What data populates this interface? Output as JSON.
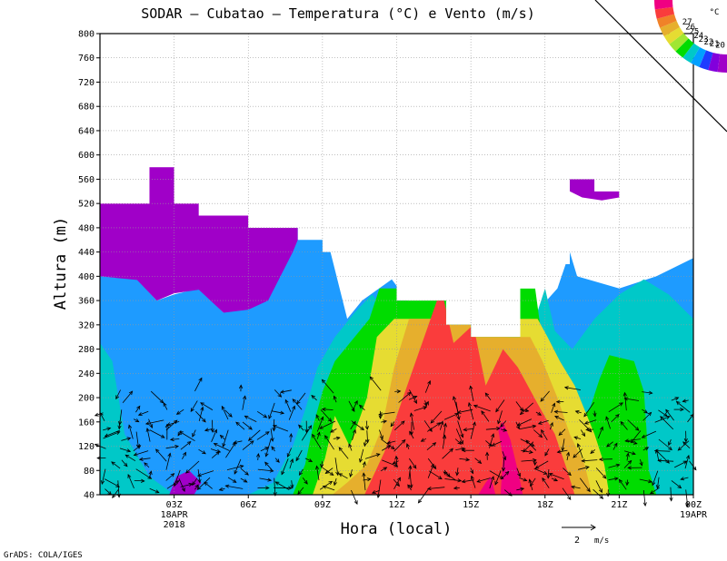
{
  "chart_data": {
    "type": "heatmap",
    "title": "SODAR – Cubatao – Temperatura (°C) e Vento (m/s)",
    "xlabel": "Hora (local)",
    "ylabel": "Altura (m)",
    "credit": "GrADS: COLA/IGES",
    "ylim": [
      40,
      800
    ],
    "yticks": [
      "40",
      "80",
      "120",
      "160",
      "200",
      "240",
      "280",
      "320",
      "360",
      "400",
      "440",
      "480",
      "520",
      "560",
      "600",
      "640",
      "680",
      "720",
      "760",
      "800"
    ],
    "xlim_hours": [
      22,
      46
    ],
    "xticks": [
      {
        "hour": 25,
        "label": "03Z",
        "sub1": "18APR",
        "sub2": "2018"
      },
      {
        "hour": 28,
        "label": "06Z",
        "sub1": "",
        "sub2": ""
      },
      {
        "hour": 31,
        "label": "09Z",
        "sub1": "",
        "sub2": ""
      },
      {
        "hour": 34,
        "label": "12Z",
        "sub1": "",
        "sub2": ""
      },
      {
        "hour": 37,
        "label": "15Z",
        "sub1": "",
        "sub2": ""
      },
      {
        "hour": 40,
        "label": "18Z",
        "sub1": "",
        "sub2": ""
      },
      {
        "hour": 43,
        "label": "21Z",
        "sub1": "",
        "sub2": ""
      },
      {
        "hour": 46,
        "label": "00Z",
        "sub1": "19APR",
        "sub2": ""
      }
    ],
    "grid": true,
    "legend": {
      "position": "top-right",
      "unit": "°C",
      "levels": [
        "20",
        "21",
        "22",
        "23",
        "24",
        "25",
        "26",
        "27"
      ],
      "colors": [
        "#a000c8",
        "#8200dc",
        "#1e3cff",
        "#00a0ff",
        "#00c8c8",
        "#00dc00",
        "#a0e632",
        "#e6dc32",
        "#e6af2d",
        "#f08228",
        "#fa3c3c",
        "#f00082"
      ]
    },
    "wind_reference": {
      "label": "2",
      "unit": "m/s",
      "value": 2
    },
    "colors": {
      "c20": "#a000c8",
      "c21": "#1e9bff",
      "c22": "#00c8c8",
      "c23": "#00dc00",
      "c24": "#e6dc32",
      "c25": "#e6af2d",
      "c26": "#fa3c3c",
      "c27": "#f00082"
    },
    "data_top_m": [
      [
        22,
        520
      ],
      [
        24,
        520
      ],
      [
        24,
        580
      ],
      [
        25,
        580
      ],
      [
        25,
        520
      ],
      [
        26,
        520
      ],
      [
        26,
        500
      ],
      [
        27,
        500
      ],
      [
        28,
        500
      ],
      [
        28,
        480
      ],
      [
        29,
        480
      ],
      [
        30,
        480
      ],
      [
        30,
        460
      ],
      [
        31,
        460
      ],
      [
        31,
        440
      ],
      [
        32,
        440
      ],
      [
        32,
        380
      ],
      [
        33,
        380
      ],
      [
        33,
        400
      ],
      [
        34,
        400
      ],
      [
        34,
        360
      ],
      [
        35,
        360
      ],
      [
        36,
        360
      ],
      [
        36,
        320
      ],
      [
        37,
        320
      ],
      [
        37,
        300
      ],
      [
        38,
        300
      ],
      [
        39,
        300
      ],
      [
        39,
        380
      ],
      [
        40,
        380
      ],
      [
        40,
        420
      ],
      [
        41,
        420
      ],
      [
        41,
        560
      ],
      [
        42,
        560
      ],
      [
        42,
        540
      ],
      [
        43,
        540
      ],
      [
        43,
        480
      ],
      [
        44,
        480
      ],
      [
        45,
        480
      ],
      [
        46,
        480
      ]
    ],
    "contour_bands": [
      {
        "level": "c21",
        "pts": [
          [
            22,
            40
          ],
          [
            46,
            40
          ],
          [
            46,
            430
          ],
          [
            44.5,
            400
          ],
          [
            43,
            380
          ],
          [
            41.3,
            400
          ],
          [
            41,
            440
          ],
          [
            40.5,
            380
          ],
          [
            39.4,
            330
          ],
          [
            35,
            330
          ],
          [
            33.8,
            395
          ],
          [
            32.6,
            360
          ],
          [
            32,
            330
          ],
          [
            31.2,
            460
          ],
          [
            30,
            480
          ],
          [
            29,
            430
          ],
          [
            28,
            360
          ],
          [
            27,
            340
          ],
          [
            26,
            380
          ],
          [
            25,
            370
          ],
          [
            24.3,
            360
          ],
          [
            23.5,
            395
          ],
          [
            22,
            400
          ]
        ]
      },
      {
        "level": "c22",
        "pts": [
          [
            22,
            40
          ],
          [
            46,
            40
          ],
          [
            46,
            330
          ],
          [
            45,
            370
          ],
          [
            44,
            395
          ],
          [
            43,
            370
          ],
          [
            42,
            330
          ],
          [
            41.1,
            280
          ],
          [
            40.4,
            310
          ],
          [
            40,
            380
          ],
          [
            39.6,
            330
          ],
          [
            33.8,
            330
          ],
          [
            33,
            370
          ],
          [
            32.3,
            340
          ],
          [
            31.5,
            300
          ],
          [
            30.8,
            250
          ],
          [
            30.3,
            180
          ],
          [
            29.8,
            120
          ],
          [
            29,
            60
          ],
          [
            28,
            40
          ],
          [
            25,
            40
          ],
          [
            24,
            70
          ],
          [
            23,
            140
          ],
          [
            22.5,
            260
          ],
          [
            22,
            290
          ]
        ]
      },
      {
        "level": "c23",
        "pts": [
          [
            29.8,
            40
          ],
          [
            44.5,
            40
          ],
          [
            44.2,
            80
          ],
          [
            44.1,
            150
          ],
          [
            44,
            210
          ],
          [
            43.6,
            260
          ],
          [
            42.6,
            270
          ],
          [
            42.2,
            230
          ],
          [
            41.8,
            180
          ],
          [
            41.1,
            160
          ],
          [
            40.6,
            210
          ],
          [
            40.1,
            260
          ],
          [
            39.8,
            320
          ],
          [
            39.6,
            380
          ],
          [
            33.3,
            380
          ],
          [
            32.9,
            330
          ],
          [
            31.5,
            260
          ],
          [
            31,
            210
          ],
          [
            30.6,
            150
          ],
          [
            30.3,
            90
          ]
        ]
      },
      {
        "level": "c24",
        "pts": [
          [
            30.6,
            40
          ],
          [
            42.6,
            40
          ],
          [
            42.4,
            90
          ],
          [
            42,
            140
          ],
          [
            41.6,
            180
          ],
          [
            41.2,
            220
          ],
          [
            40.6,
            260
          ],
          [
            40.1,
            300
          ],
          [
            39.7,
            330
          ],
          [
            33.9,
            330
          ],
          [
            33.2,
            300
          ],
          [
            32.8,
            200
          ],
          [
            32.1,
            120
          ],
          [
            31.5,
            170
          ],
          [
            31.1,
            100
          ]
        ]
      },
      {
        "level": "c25",
        "pts": [
          [
            31.4,
            40
          ],
          [
            41.9,
            40
          ],
          [
            41.6,
            90
          ],
          [
            41,
            140
          ],
          [
            40.5,
            200
          ],
          [
            39.9,
            260
          ],
          [
            39.4,
            300
          ],
          [
            38.5,
            300
          ],
          [
            38,
            330
          ],
          [
            34.5,
            330
          ],
          [
            33.9,
            250
          ],
          [
            33.4,
            150
          ],
          [
            32.8,
            90
          ],
          [
            32,
            60
          ]
        ]
      },
      {
        "level": "c26",
        "pts": [
          [
            32.7,
            40
          ],
          [
            41.2,
            40
          ],
          [
            40.9,
            80
          ],
          [
            40.4,
            140
          ],
          [
            39.7,
            190
          ],
          [
            38.9,
            250
          ],
          [
            38.3,
            280
          ],
          [
            37.6,
            220
          ],
          [
            37.1,
            320
          ],
          [
            36.3,
            290
          ],
          [
            35.8,
            380
          ],
          [
            35.2,
            310
          ],
          [
            34.6,
            240
          ],
          [
            34,
            170
          ],
          [
            33.5,
            110
          ]
        ]
      },
      {
        "level": "c27",
        "pts": [
          [
            38.2,
            40
          ],
          [
            39.1,
            40
          ],
          [
            38.9,
            80
          ],
          [
            38.6,
            130
          ],
          [
            38.3,
            160
          ],
          [
            38.1,
            150
          ],
          [
            38.3,
            100
          ]
        ]
      },
      {
        "level": "c27",
        "pts": [
          [
            37.3,
            40
          ],
          [
            38,
            40
          ],
          [
            37.8,
            70
          ],
          [
            37.6,
            60
          ]
        ]
      },
      {
        "level": "c20",
        "pts": [
          [
            22,
            520
          ],
          [
            24,
            520
          ],
          [
            24,
            580
          ],
          [
            25,
            580
          ],
          [
            25,
            520
          ],
          [
            26,
            520
          ],
          [
            26,
            500
          ],
          [
            27,
            500
          ],
          [
            28,
            500
          ],
          [
            28,
            480
          ],
          [
            29,
            480
          ],
          [
            30,
            480
          ],
          [
            30,
            460
          ],
          [
            29.8,
            440
          ],
          [
            29.3,
            400
          ],
          [
            28.8,
            360
          ],
          [
            28,
            345
          ],
          [
            27,
            340
          ],
          [
            26,
            378
          ],
          [
            25,
            372
          ],
          [
            24.3,
            360
          ],
          [
            23.5,
            394
          ],
          [
            22,
            400
          ]
        ]
      },
      {
        "level": "c20",
        "pts": [
          [
            41,
            560
          ],
          [
            42,
            560
          ],
          [
            42,
            540
          ],
          [
            43,
            540
          ],
          [
            43,
            530
          ],
          [
            42.3,
            525
          ],
          [
            41.5,
            530
          ],
          [
            41,
            540
          ]
        ]
      },
      {
        "level": "c20",
        "pts": [
          [
            24.8,
            40
          ],
          [
            25.8,
            40
          ],
          [
            26.1,
            60
          ],
          [
            25.6,
            80
          ],
          [
            25.1,
            70
          ]
        ]
      }
    ]
  }
}
